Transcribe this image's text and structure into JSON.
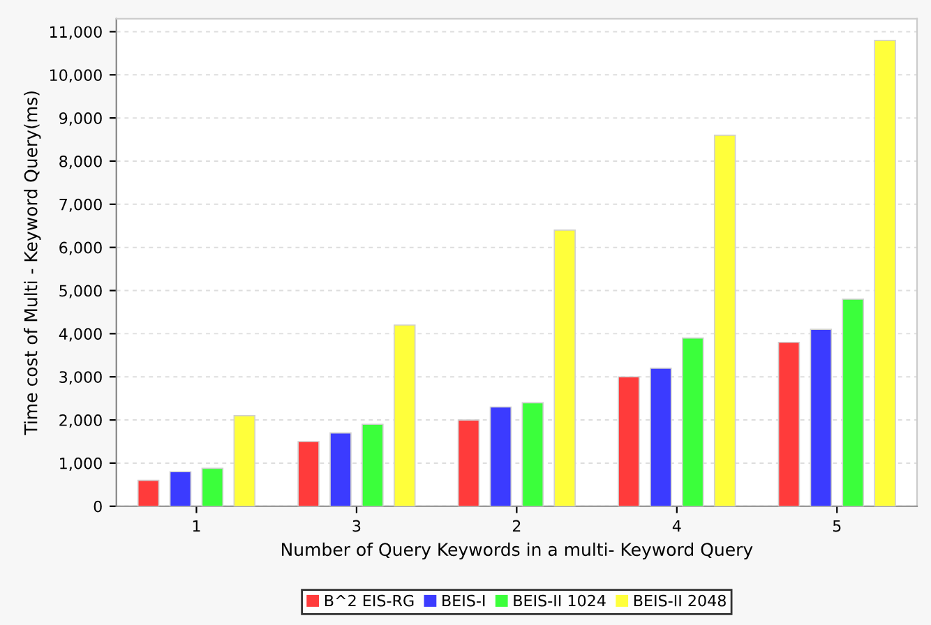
{
  "chart_data": {
    "type": "bar",
    "xlabel": "Number of Query Keywords in a multi- Keyword Query",
    "ylabel": "Time cost of Multi - Keyword Query(ms)",
    "categories": [
      "1",
      "3",
      "2",
      "4",
      "5"
    ],
    "series": [
      {
        "name": "B^2 EIS-RG",
        "color": "#ff3b3b",
        "values": [
          600,
          1500,
          2000,
          3000,
          3800
        ]
      },
      {
        "name": "BEIS-I",
        "color": "#3b3bff",
        "values": [
          800,
          1700,
          2300,
          3200,
          4100
        ]
      },
      {
        "name": "BEIS-II 1024",
        "color": "#3bff3b",
        "values": [
          880,
          1900,
          2400,
          3900,
          4800
        ]
      },
      {
        "name": "BEIS-II 2048",
        "color": "#ffff3b",
        "values": [
          2100,
          4200,
          6400,
          8600,
          10800
        ]
      }
    ],
    "ylim": [
      0,
      11300
    ],
    "yticks": [
      {
        "value": 0,
        "label": "0"
      },
      {
        "value": 1000,
        "label": "1,000"
      },
      {
        "value": 2000,
        "label": "2,000"
      },
      {
        "value": 3000,
        "label": "3,000"
      },
      {
        "value": 4000,
        "label": "4,000"
      },
      {
        "value": 5000,
        "label": "5,000"
      },
      {
        "value": 6000,
        "label": "6,000"
      },
      {
        "value": 7000,
        "label": "7,000"
      },
      {
        "value": 8000,
        "label": "8,000"
      },
      {
        "value": 9000,
        "label": "9,000"
      },
      {
        "value": 10000,
        "label": "10,000"
      },
      {
        "value": 11000,
        "label": "11,000"
      }
    ],
    "grid": "y",
    "legend": "bottom"
  }
}
